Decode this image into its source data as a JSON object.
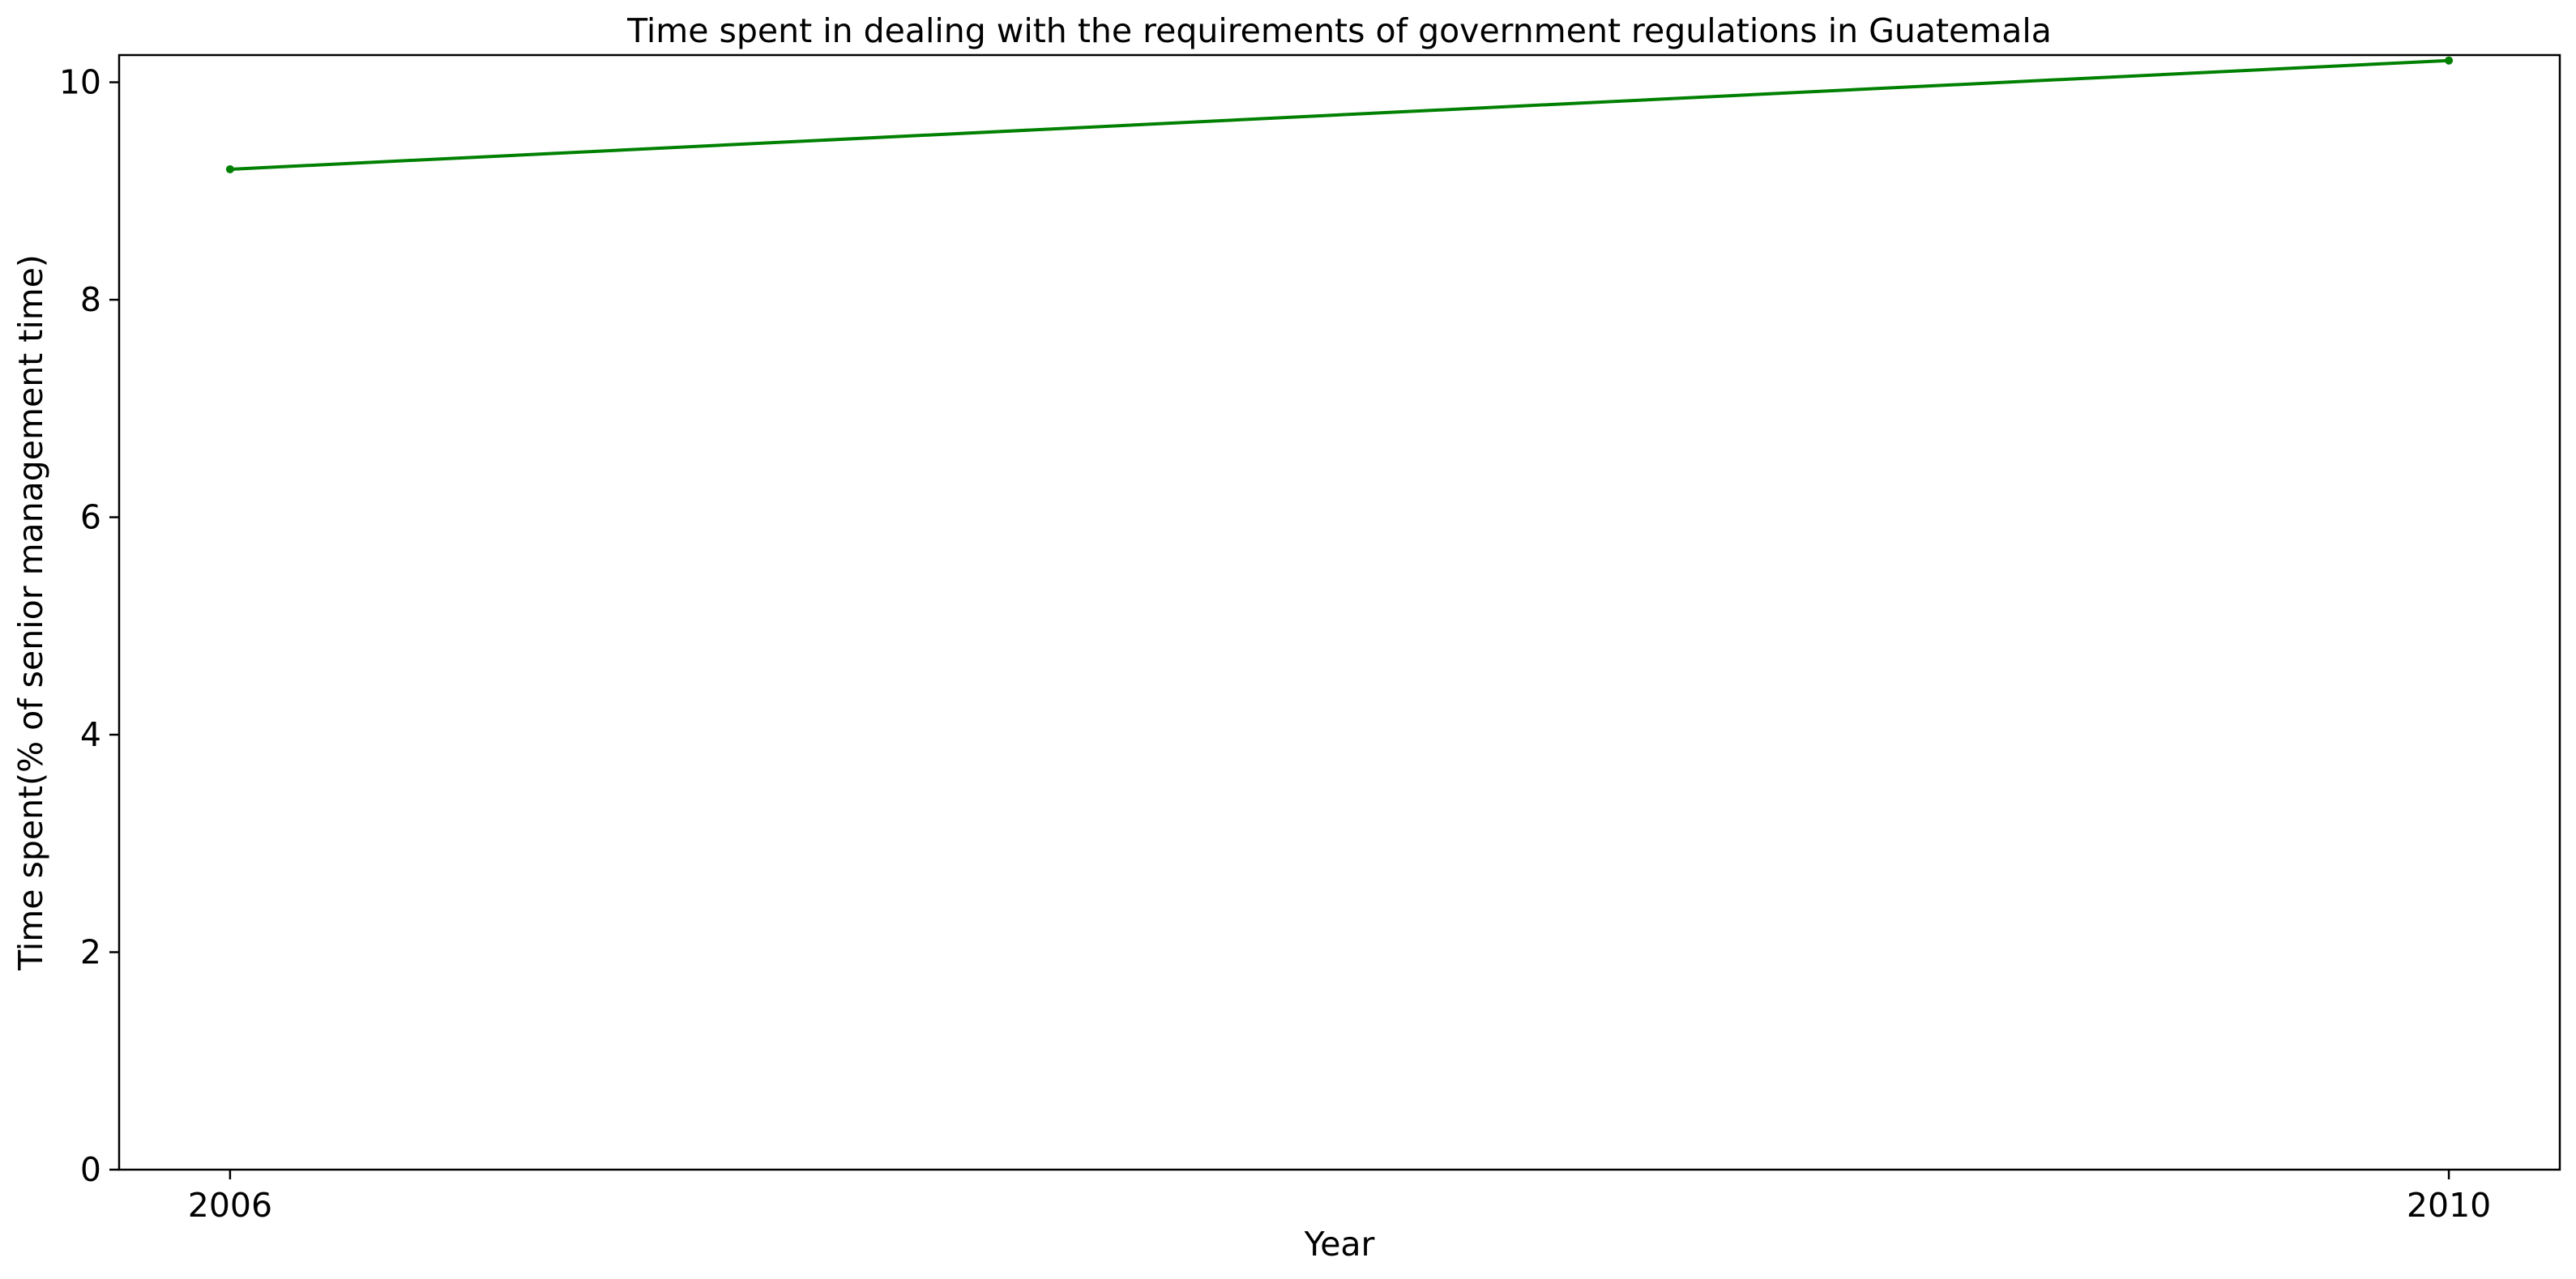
{
  "chart_data": {
    "type": "line",
    "title": "Time spent in dealing with the requirements of government regulations in Guatemala",
    "xlabel": "Year",
    "ylabel": "Time spent(% of senior management time)",
    "x": [
      2006,
      2010
    ],
    "series": [
      {
        "values": [
          9.2,
          10.2
        ],
        "color": "#008000",
        "marker": "dot"
      }
    ],
    "xticks": [
      "2006",
      "2010"
    ],
    "yticks": [
      "0",
      "2",
      "4",
      "6",
      "8",
      "10"
    ],
    "xlim": [
      2005.8,
      2010.2
    ],
    "ylim": [
      0,
      10.25
    ],
    "grid": false,
    "legend": "none"
  }
}
